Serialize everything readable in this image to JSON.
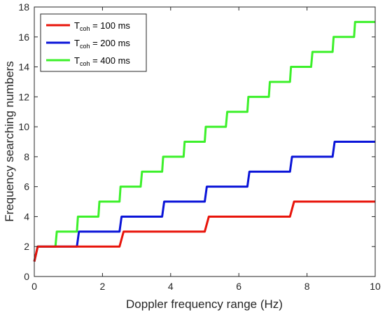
{
  "chart_data": {
    "type": "line",
    "xlabel": "Doppler frequency range (Hz)",
    "ylabel": "Frequency searching numbers",
    "xlim": [
      0,
      10
    ],
    "ylim": [
      0,
      18
    ],
    "x_ticks": [
      "0",
      "2",
      "4",
      "6",
      "8",
      "10"
    ],
    "y_ticks": [
      "0",
      "2",
      "4",
      "6",
      "8",
      "10",
      "12",
      "14",
      "16",
      "18"
    ],
    "grid": false,
    "legend_position": "top-left",
    "series": [
      {
        "name_main": "T",
        "name_sub": "coh",
        "name_rest": " = 100 ms",
        "color": "#e8140a",
        "x": [
          0,
          0.1,
          1.25,
          2.5,
          2.62,
          5,
          5.12,
          7.5,
          7.62,
          10
        ],
        "y": [
          1,
          2,
          2,
          2,
          3,
          3,
          4,
          4,
          5,
          5
        ]
      },
      {
        "name_main": "T",
        "name_sub": "coh",
        "name_rest": " = 200 ms",
        "color": "#0a14d8",
        "x": [
          0,
          0.1,
          0.62,
          1.25,
          1.31,
          2.5,
          2.56,
          3.75,
          3.81,
          5,
          5.06,
          6.25,
          6.31,
          7.5,
          7.56,
          8.75,
          8.81,
          10
        ],
        "y": [
          1,
          2,
          2,
          2,
          3,
          3,
          4,
          4,
          5,
          5,
          6,
          6,
          7,
          7,
          8,
          8,
          9,
          9
        ]
      },
      {
        "name_main": "T",
        "name_sub": "coh",
        "name_rest": " = 400 ms",
        "color": "#3cf02a",
        "x": [
          0,
          0.1,
          0.62,
          0.66,
          1.25,
          1.28,
          1.88,
          1.91,
          2.5,
          2.53,
          3.12,
          3.16,
          3.75,
          3.78,
          4.38,
          4.41,
          5,
          5.03,
          5.62,
          5.66,
          6.25,
          6.28,
          6.88,
          6.91,
          7.5,
          7.53,
          8.12,
          8.16,
          8.75,
          8.78,
          9.38,
          9.41,
          10
        ],
        "y": [
          1,
          2,
          2,
          3,
          3,
          4,
          4,
          5,
          5,
          6,
          6,
          7,
          7,
          8,
          8,
          9,
          9,
          10,
          10,
          11,
          11,
          12,
          12,
          13,
          13,
          14,
          14,
          15,
          15,
          16,
          16,
          17,
          17
        ]
      }
    ]
  }
}
